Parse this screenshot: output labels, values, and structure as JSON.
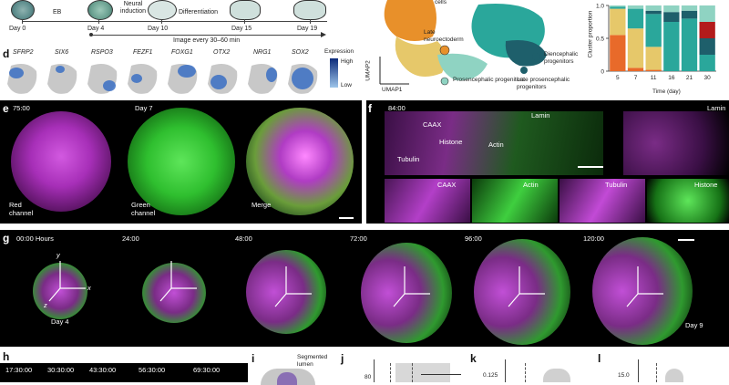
{
  "panel_a": {
    "days": [
      "Day 0",
      "Day 4",
      "Day 10",
      "Day 15",
      "Day 19"
    ],
    "steps": [
      "EB",
      "Neural induction",
      "Differentiation"
    ],
    "imaging_note": "Image every 30–60 min"
  },
  "panel_d": {
    "label": "d",
    "genes": [
      "SFRP2",
      "SIX6",
      "RSPO3",
      "FEZF1",
      "FOXG1",
      "OTX2",
      "NRG1",
      "SOX2"
    ],
    "legend_title": "Expression",
    "legend_high": "High",
    "legend_low": "Low"
  },
  "umap": {
    "xlabel": "UMAP1",
    "ylabel": "UMAP2",
    "clusters": [
      "cells",
      "Late neuroectoderm",
      "Prosencephalic progenitors",
      "Late prosencephalic progenitors",
      "Diencephalic progenitors"
    ],
    "colors": {
      "orange": "#e8902a",
      "yellow": "#e6c86a",
      "teal": "#2aa79b",
      "dark_teal": "#1e5f6b",
      "mint": "#8fd3c2"
    }
  },
  "chart_data": {
    "type": "bar",
    "stacked": true,
    "xlabel": "Time (day)",
    "ylabel": "Cluster proportion",
    "ylim": [
      0,
      1.0
    ],
    "yticks": [
      "0",
      "0.5",
      "1.0"
    ],
    "categories": [
      "5",
      "7",
      "11",
      "16",
      "21",
      "30"
    ],
    "series": [
      {
        "color": "#e86a2a",
        "values": [
          0.55,
          0.05,
          0.02,
          0.0,
          0.0,
          0.0
        ]
      },
      {
        "color": "#e6c86a",
        "values": [
          0.4,
          0.6,
          0.35,
          0.0,
          0.0,
          0.0
        ]
      },
      {
        "color": "#2aa79b",
        "values": [
          0.03,
          0.3,
          0.5,
          0.75,
          0.8,
          0.25
        ]
      },
      {
        "color": "#1e5f6b",
        "values": [
          0.0,
          0.0,
          0.05,
          0.15,
          0.12,
          0.25
        ]
      },
      {
        "color": "#b31b1b",
        "values": [
          0.0,
          0.0,
          0.0,
          0.0,
          0.0,
          0.25
        ]
      },
      {
        "color": "#8fd3c2",
        "values": [
          0.02,
          0.05,
          0.08,
          0.1,
          0.08,
          0.25
        ]
      }
    ]
  },
  "panel_e": {
    "label": "e",
    "time": "75:00",
    "day": "Day 7",
    "captions": [
      "Red channel",
      "Green channel",
      "Merge"
    ]
  },
  "panel_f": {
    "label": "f",
    "time": "84:00",
    "markers": [
      "CAAX",
      "Lamin",
      "Histone",
      "Actin",
      "Tubulin"
    ],
    "insets": [
      "CAAX",
      "Actin",
      "Tubulin",
      "Histone"
    ],
    "lamin": "Lamin"
  },
  "panel_g": {
    "label": "g",
    "times": [
      "00:00 Hours",
      "24:00",
      "48:00",
      "72:00",
      "96:00",
      "120:00"
    ],
    "day_start": "Day 4",
    "day_end": "Day 9",
    "axes": [
      "x",
      "y",
      "z"
    ]
  },
  "panel_h": {
    "label": "h",
    "times": [
      "17:30:00",
      "30:30:00",
      "43:30:00",
      "56:30:00",
      "69:30:00"
    ]
  },
  "panel_i": {
    "label": "i",
    "text": "Segmented lumen"
  },
  "panel_j": {
    "label": "j",
    "tick": "80"
  },
  "panel_k": {
    "label": "k",
    "tick": "0.125"
  },
  "panel_l": {
    "label": "l",
    "tick": "15.0"
  }
}
